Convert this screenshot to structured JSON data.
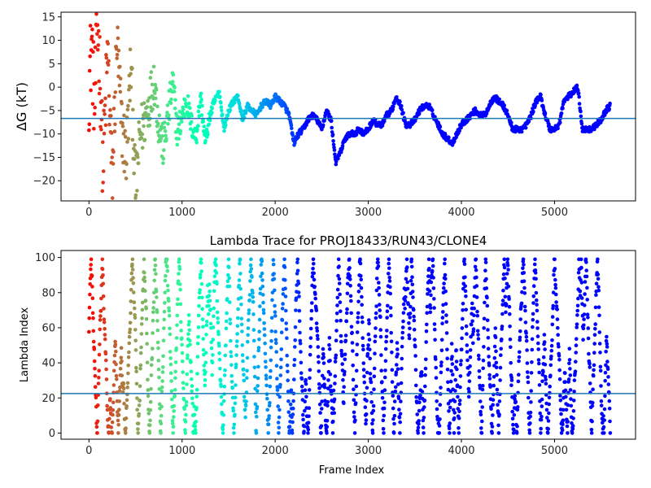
{
  "chart_data": [
    {
      "type": "scatter",
      "title": "",
      "xlabel": "",
      "ylabel": "ΔG (kT)",
      "xlim": [
        -300,
        5870
      ],
      "ylim": [
        -24.3,
        16
      ],
      "xticks": [
        0,
        1000,
        2000,
        3000,
        4000,
        5000
      ],
      "yticks": [
        -20,
        -15,
        -10,
        -5,
        0,
        5,
        10,
        15
      ],
      "hline": -6.7,
      "hline_color": "#1f77b4",
      "colormap": "rainbow",
      "grid": false,
      "legend": "none",
      "anchors": [
        [
          0,
          0
        ],
        [
          30,
          10
        ],
        [
          60,
          -5
        ],
        [
          90,
          14
        ],
        [
          120,
          3
        ],
        [
          150,
          -18
        ],
        [
          200,
          8
        ],
        [
          250,
          -20
        ],
        [
          300,
          10
        ],
        [
          350,
          -8
        ],
        [
          400,
          -15
        ],
        [
          450,
          5
        ],
        [
          500,
          -22
        ],
        [
          550,
          -10
        ],
        [
          600,
          -7
        ],
        [
          650,
          -3
        ],
        [
          700,
          2
        ],
        [
          750,
          -8
        ],
        [
          800,
          -13
        ],
        [
          850,
          -6
        ],
        [
          900,
          1
        ],
        [
          950,
          -10
        ],
        [
          1000,
          -6
        ],
        [
          1050,
          -3
        ],
        [
          1100,
          -8
        ],
        [
          1150,
          -11
        ],
        [
          1200,
          -2
        ],
        [
          1250,
          -12
        ],
        [
          1300,
          -6
        ],
        [
          1350,
          -3
        ],
        [
          1400,
          -1
        ],
        [
          1450,
          -9
        ],
        [
          1500,
          -5
        ],
        [
          1550,
          -3
        ],
        [
          1600,
          -2
        ],
        [
          1650,
          -7
        ],
        [
          1700,
          -4
        ],
        [
          1750,
          -5
        ],
        [
          1800,
          -6
        ],
        [
          1850,
          -4
        ],
        [
          1900,
          -3
        ],
        [
          1950,
          -4
        ],
        [
          2000,
          -2
        ],
        [
          2050,
          -3
        ],
        [
          2100,
          -4
        ],
        [
          2150,
          -6
        ],
        [
          2200,
          -12
        ],
        [
          2250,
          -10
        ],
        [
          2300,
          -9
        ],
        [
          2350,
          -7
        ],
        [
          2400,
          -6
        ],
        [
          2450,
          -7
        ],
        [
          2500,
          -9
        ],
        [
          2550,
          -5
        ],
        [
          2600,
          -7
        ],
        [
          2650,
          -16
        ],
        [
          2700,
          -14
        ],
        [
          2750,
          -11
        ],
        [
          2800,
          -10
        ],
        [
          2850,
          -10
        ],
        [
          2900,
          -9
        ],
        [
          2950,
          -10
        ],
        [
          3000,
          -9
        ],
        [
          3050,
          -7
        ],
        [
          3100,
          -8
        ],
        [
          3150,
          -8
        ],
        [
          3200,
          -6
        ],
        [
          3250,
          -5
        ],
        [
          3300,
          -2
        ],
        [
          3350,
          -4
        ],
        [
          3400,
          -8
        ],
        [
          3450,
          -8
        ],
        [
          3500,
          -7
        ],
        [
          3550,
          -5
        ],
        [
          3600,
          -4
        ],
        [
          3650,
          -4
        ],
        [
          3700,
          -6
        ],
        [
          3750,
          -8
        ],
        [
          3800,
          -10
        ],
        [
          3850,
          -11
        ],
        [
          3900,
          -12
        ],
        [
          3950,
          -10
        ],
        [
          4000,
          -8
        ],
        [
          4050,
          -7
        ],
        [
          4100,
          -6
        ],
        [
          4150,
          -5
        ],
        [
          4200,
          -6
        ],
        [
          4250,
          -6
        ],
        [
          4300,
          -4
        ],
        [
          4350,
          -2
        ],
        [
          4400,
          -3
        ],
        [
          4450,
          -4
        ],
        [
          4500,
          -6
        ],
        [
          4550,
          -9
        ],
        [
          4600,
          -9
        ],
        [
          4650,
          -9
        ],
        [
          4700,
          -8
        ],
        [
          4750,
          -6
        ],
        [
          4800,
          -3
        ],
        [
          4850,
          -2
        ],
        [
          4900,
          -6
        ],
        [
          4950,
          -9
        ],
        [
          5000,
          -9
        ],
        [
          5050,
          -8
        ],
        [
          5100,
          -3
        ],
        [
          5150,
          -2
        ],
        [
          5200,
          -1
        ],
        [
          5250,
          0
        ],
        [
          5300,
          -9
        ],
        [
          5350,
          -9
        ],
        [
          5400,
          -9
        ],
        [
          5450,
          -8
        ],
        [
          5500,
          -7
        ],
        [
          5550,
          -5
        ],
        [
          5600,
          -4
        ]
      ]
    },
    {
      "type": "scatter",
      "title": "Lambda Trace for PROJ18433/RUN43/CLONE4",
      "xlabel": "Frame Index",
      "ylabel": "Lambda Index",
      "xlim": [
        -300,
        5870
      ],
      "ylim": [
        -3.5,
        104
      ],
      "xticks": [
        0,
        1000,
        2000,
        3000,
        4000,
        5000
      ],
      "yticks": [
        0,
        20,
        40,
        60,
        80,
        100
      ],
      "hline": 22.5,
      "hline_color": "#1f77b4",
      "colormap": "rainbow",
      "grid": false,
      "legend": "none",
      "n_frames": 5600,
      "value_range": [
        0,
        99
      ]
    }
  ]
}
